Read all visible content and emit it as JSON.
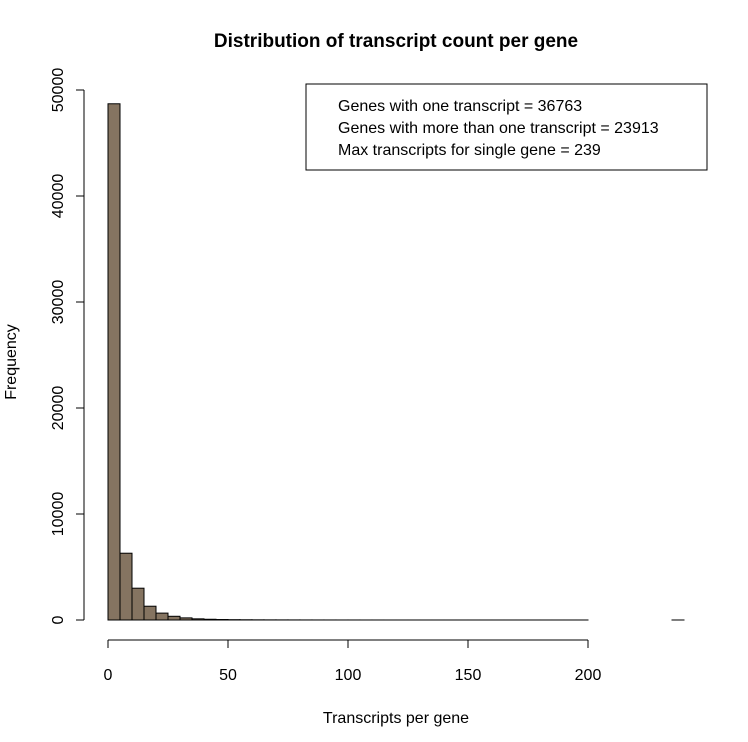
{
  "chart_data": {
    "type": "bar",
    "title": "Distribution of transcript count per gene",
    "xlabel": "Transcripts per gene",
    "ylabel": "Frequency",
    "xlim": [
      0,
      240
    ],
    "ylim": [
      0,
      50000
    ],
    "bin_width": 5,
    "x_ticks": [
      "0",
      "50",
      "100",
      "150",
      "200"
    ],
    "x_tick_values": [
      0,
      50,
      100,
      150,
      200
    ],
    "y_ticks": [
      "0",
      "10000",
      "20000",
      "30000",
      "40000",
      "50000"
    ],
    "y_tick_values": [
      0,
      10000,
      20000,
      30000,
      40000,
      50000
    ],
    "bin_starts": [
      0,
      5,
      10,
      15,
      20,
      25,
      30,
      35,
      40,
      45,
      50,
      55,
      60,
      65,
      70,
      75,
      80,
      85,
      90,
      95,
      100,
      105,
      110,
      115,
      120,
      125,
      130,
      135,
      140,
      145,
      150,
      155,
      160,
      165,
      170,
      175,
      180,
      185,
      190,
      195,
      200,
      205,
      210,
      215,
      220,
      225,
      230,
      235
    ],
    "values": [
      48700,
      6300,
      3000,
      1300,
      650,
      350,
      200,
      110,
      70,
      45,
      30,
      22,
      16,
      12,
      10,
      8,
      6,
      5,
      4,
      3,
      3,
      2,
      2,
      1,
      1,
      1,
      1,
      1,
      1,
      1,
      1,
      1,
      1,
      1,
      1,
      1,
      1,
      1,
      1,
      1,
      0,
      0,
      0,
      0,
      0,
      0,
      0,
      1
    ],
    "bar_color": "#857461",
    "legend": {
      "position": "top-right",
      "lines": [
        "Genes with one transcript = 36763",
        "Genes with more than one transcript = 23913",
        "Max transcripts for single gene =  239"
      ]
    }
  }
}
